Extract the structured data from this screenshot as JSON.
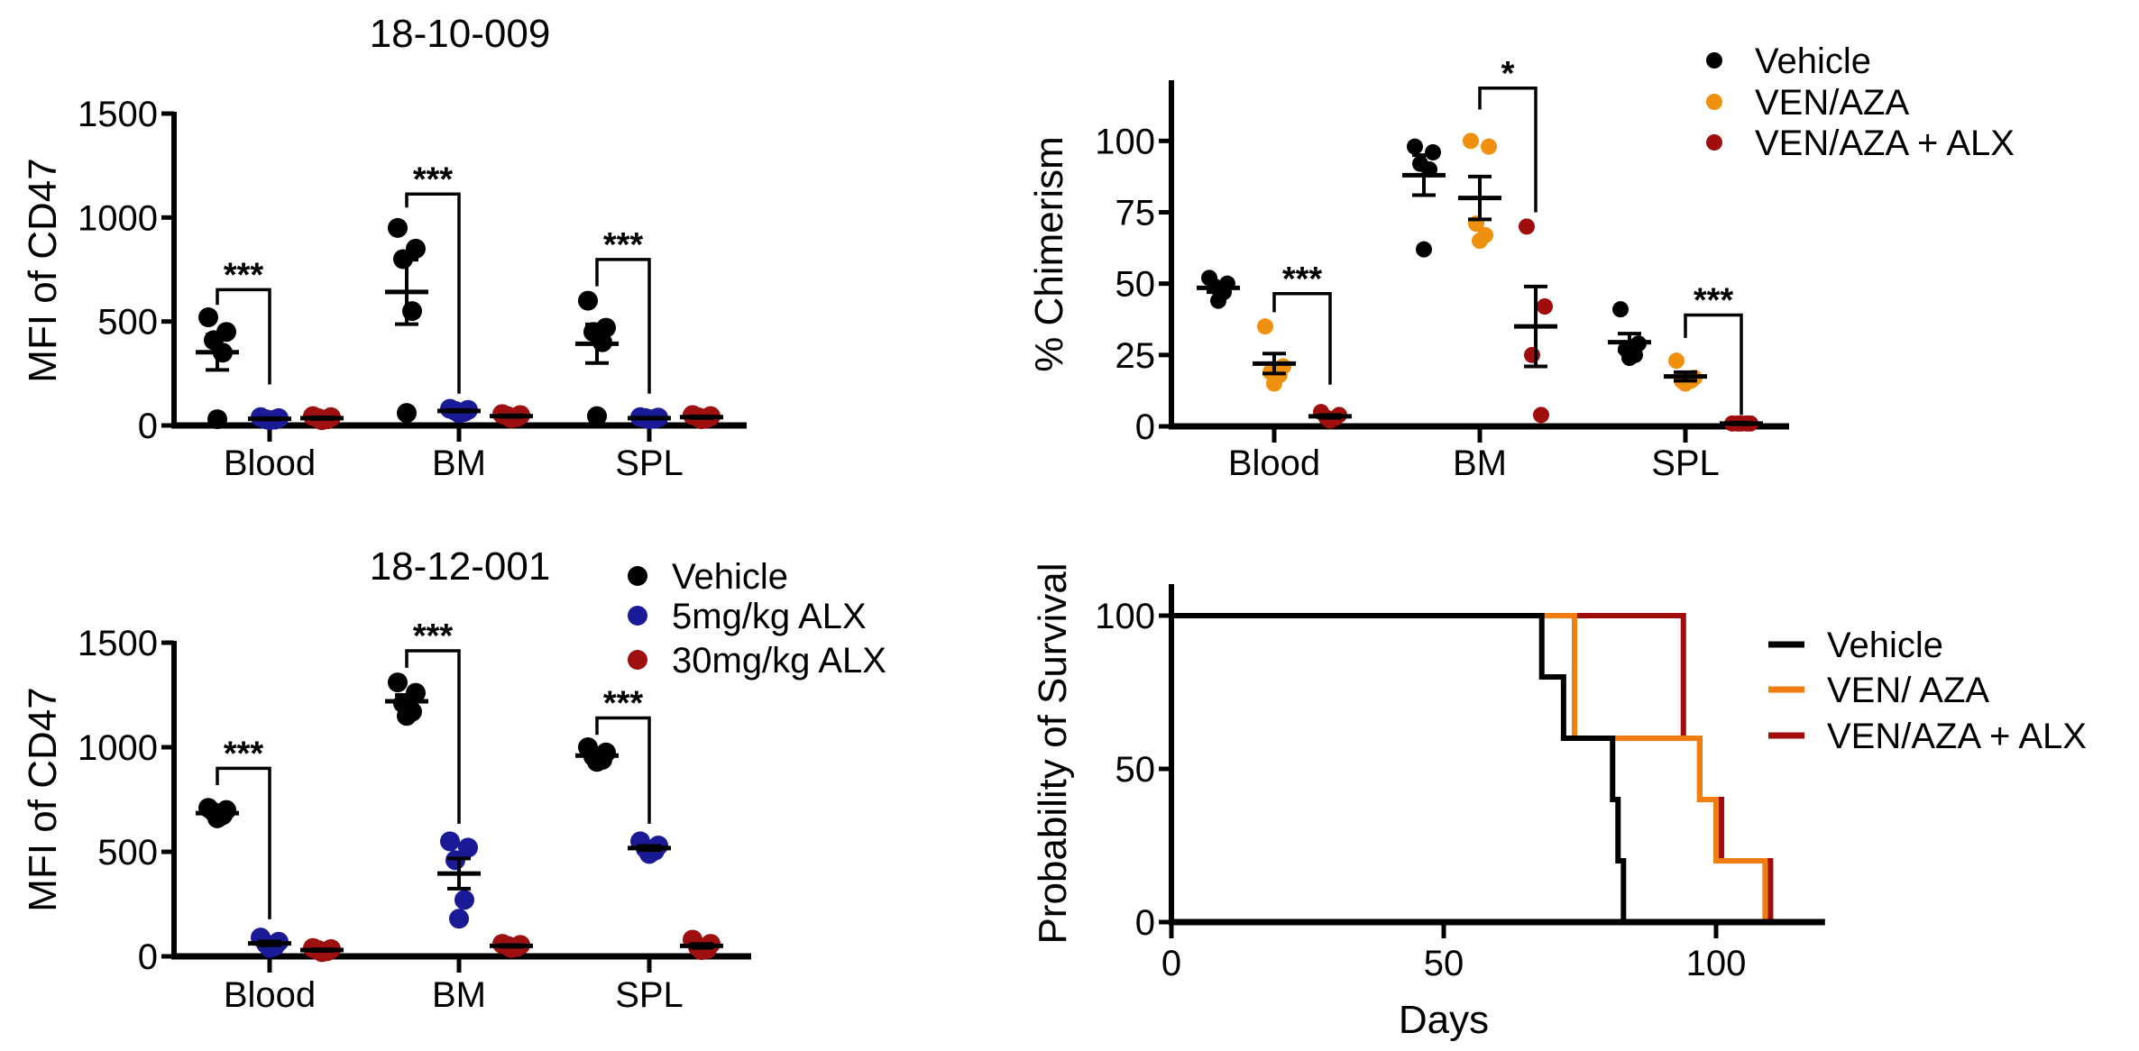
{
  "chart_data": [
    {
      "id": "mfi_18_10_009",
      "type": "scatter",
      "title": "18-10-009",
      "ylabel": "MFI of CD47",
      "xlabel": "",
      "ylim": [
        0,
        1500
      ],
      "yticks": [
        0,
        500,
        1000,
        1500
      ],
      "categories": [
        "Blood",
        "BM",
        "SPL"
      ],
      "legend": null,
      "series": [
        {
          "name": "Vehicle",
          "color": "#000000",
          "points": [
            [
              520,
              450,
              410,
              350,
              30
            ],
            [
              950,
              850,
              800,
              550,
              60
            ],
            [
              600,
              470,
              450,
              400,
              45
            ]
          ],
          "mean": [
            352,
            642,
            393
          ],
          "sem": [
            85,
            155,
            93
          ]
        },
        {
          "name": "5mg/kg ALX",
          "color": "#1a1a96",
          "points": [
            [
              40,
              35,
              30,
              28,
              25
            ],
            [
              80,
              75,
              70,
              65,
              60
            ],
            [
              40,
              38,
              35,
              32,
              30
            ]
          ],
          "mean": [
            32,
            70,
            35
          ],
          "sem": [
            3,
            4,
            2
          ]
        },
        {
          "name": "30mg/kg ALX",
          "color": "#9e1010",
          "points": [
            [
              45,
              40,
              35,
              30,
              25
            ],
            [
              55,
              50,
              45,
              40,
              35
            ],
            [
              50,
              45,
              40,
              35,
              30
            ]
          ],
          "mean": [
            35,
            45,
            40
          ],
          "sem": [
            4,
            4,
            4
          ]
        }
      ],
      "brackets": [
        {
          "category": 0,
          "from": 0,
          "to": 1,
          "top": 653,
          "left_end": 580,
          "right_end": 197,
          "label": "***"
        },
        {
          "category": 1,
          "from": 0,
          "to": 1,
          "top": 1113,
          "left_end": 1048,
          "right_end": 153,
          "label": "***"
        },
        {
          "category": 2,
          "from": 0,
          "to": 1,
          "top": 798,
          "left_end": 669,
          "right_end": 153,
          "label": "***"
        }
      ]
    },
    {
      "id": "chimerism",
      "type": "scatter",
      "title": "",
      "ylabel": "% Chimerism",
      "xlabel": "",
      "ylim": [
        0,
        120
      ],
      "yticks": [
        0,
        25,
        50,
        75,
        100
      ],
      "categories": [
        "Blood",
        "BM",
        "SPL"
      ],
      "legend": "top-right",
      "series": [
        {
          "name": "Vehicle",
          "color": "#000000",
          "points": [
            [
              52,
              50,
              49,
              47,
              44
            ],
            [
              98,
              96,
              92,
              90,
              62
            ],
            [
              41,
              29,
              27,
              25,
              24
            ]
          ],
          "mean": [
            48.5,
            88,
            29.5
          ],
          "sem": [
            1.5,
            7,
            3
          ]
        },
        {
          "name": "VEN/AZA",
          "color": "#f0900f",
          "points": [
            [
              35,
              21,
              19,
              18,
              15
            ],
            [
              100,
              98,
              71,
              67,
              65
            ],
            [
              23,
              17,
              16,
              16,
              15
            ]
          ],
          "mean": [
            22,
            80,
            17.5
          ],
          "sem": [
            3.5,
            7.5,
            1.5
          ]
        },
        {
          "name": "VEN/AZA + ALX",
          "color": "#a00d0d",
          "points": [
            [
              5,
              4,
              3,
              3,
              2
            ],
            [
              70,
              42,
              25,
              4
            ],
            [
              1,
              1,
              1,
              1,
              1
            ]
          ],
          "mean": [
            3.5,
            35,
            1
          ],
          "sem": [
            0.5,
            14,
            0.3
          ]
        }
      ],
      "brackets": [
        {
          "category": 0,
          "from": 1,
          "to": 2,
          "top": 46.5,
          "left_end": 40,
          "right_end": 14.6,
          "label": "***"
        },
        {
          "category": 1,
          "from": 1,
          "to": 2,
          "top": 118.5,
          "left_end": 111,
          "right_end": 75,
          "label": "*"
        },
        {
          "category": 2,
          "from": 1,
          "to": 2,
          "top": 39,
          "left_end": 31,
          "right_end": 4,
          "label": "***"
        }
      ]
    },
    {
      "id": "mfi_18_12_001",
      "type": "scatter",
      "title": "18-12-001",
      "ylabel": "MFI of CD47",
      "xlabel": "",
      "ylim": [
        0,
        1500
      ],
      "yticks": [
        0,
        500,
        1000,
        1500
      ],
      "categories": [
        "Blood",
        "BM",
        "SPL"
      ],
      "legend": "top-right",
      "series": [
        {
          "name": "Vehicle",
          "color": "#000000",
          "points": [
            [
              710,
              700,
              690,
              675,
              660
            ],
            [
              1310,
              1260,
              1210,
              1170,
              1150
            ],
            [
              1000,
              975,
              955,
              940,
              930
            ]
          ],
          "mean": [
            685,
            1220,
            960
          ],
          "sem": [
            9,
            30,
            12
          ]
        },
        {
          "name": "5mg/kg ALX",
          "color": "#1a1a96",
          "points": [
            [
              90,
              70,
              60,
              50,
              40
            ],
            [
              550,
              520,
              460,
              270,
              180
            ],
            [
              550,
              530,
              515,
              505,
              490
            ]
          ],
          "mean": [
            62,
            396,
            518
          ],
          "sem": [
            9,
            72,
            10
          ]
        },
        {
          "name": "30mg/kg ALX",
          "color": "#9e1010",
          "points": [
            [
              40,
              35,
              30,
              25,
              20
            ],
            [
              60,
              55,
              50,
              45,
              40
            ],
            [
              80,
              60,
              45,
              35,
              30
            ]
          ],
          "mean": [
            30,
            50,
            50
          ],
          "sem": [
            4,
            4,
            9
          ]
        }
      ],
      "brackets": [
        {
          "category": 0,
          "from": 0,
          "to": 1,
          "top": 899,
          "left_end": 819,
          "right_end": 177,
          "label": "***"
        },
        {
          "category": 1,
          "from": 0,
          "to": 1,
          "top": 1461,
          "left_end": 1380,
          "right_end": 634,
          "label": "***"
        },
        {
          "category": 2,
          "from": 0,
          "to": 1,
          "top": 1140,
          "left_end": 1059,
          "right_end": 634,
          "label": "***"
        }
      ]
    },
    {
      "id": "survival",
      "type": "line",
      "subtype": "kaplan-meier",
      "title": "",
      "xlabel": "Days",
      "ylabel": "Probability of Survival",
      "xlim": [
        0,
        120
      ],
      "ylim": [
        0,
        110
      ],
      "xticks": [
        0,
        50,
        100
      ],
      "yticks": [
        0,
        50,
        100
      ],
      "legend": "right",
      "series": [
        {
          "name": "Vehicle",
          "color": "#000000",
          "steps": [
            [
              0,
              100
            ],
            [
              68,
              80
            ],
            [
              72,
              60
            ],
            [
              81,
              40
            ],
            [
              82,
              20
            ],
            [
              83,
              0
            ]
          ]
        },
        {
          "name": "VEN/ AZA",
          "color": "#f07d10",
          "steps": [
            [
              0,
              100
            ],
            [
              74,
              60
            ],
            [
              97,
              40
            ],
            [
              100,
              20
            ],
            [
              109,
              0
            ]
          ]
        },
        {
          "name": "VEN/AZA + ALX",
          "color": "#a00d0d",
          "steps": [
            [
              0,
              100
            ],
            [
              94,
              60
            ],
            [
              97,
              40
            ],
            [
              101,
              20
            ],
            [
              110,
              0
            ]
          ]
        }
      ]
    }
  ]
}
